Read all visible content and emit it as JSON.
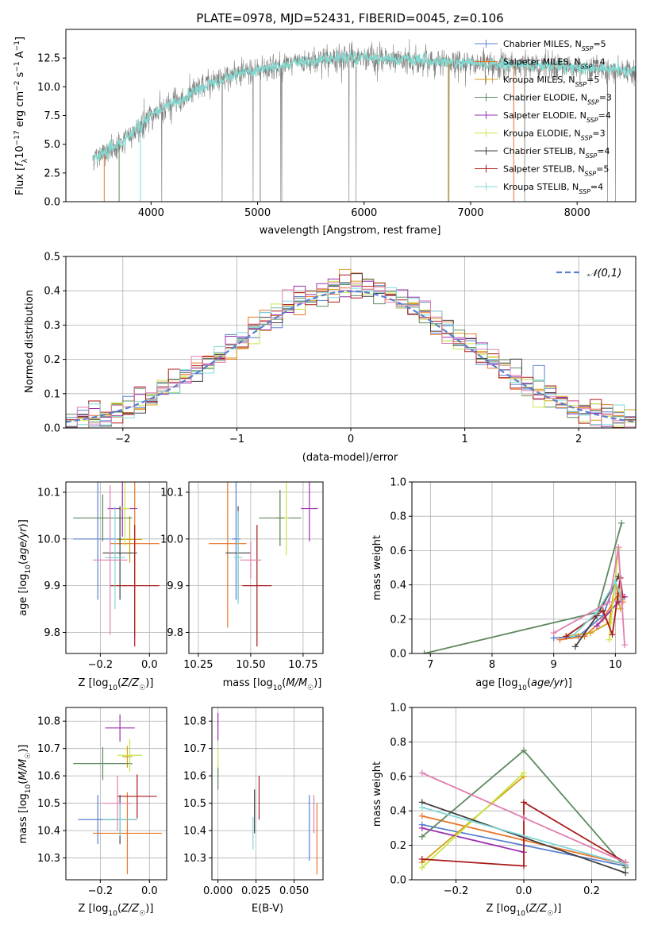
{
  "title": "PLATE=0978, MJD=52431, FIBERID=0045, z=0.106",
  "colors": {
    "c0": "#5a7fd0",
    "c1": "#e8762b",
    "c2": "#d4a017",
    "c3": "#5e8a5e",
    "c4": "#9b2fae",
    "c5": "#c8e64a",
    "c6": "#404040",
    "c7": "#aa1a1a",
    "c8": "#80d8d8",
    "c9": "#e07fb0",
    "data": "#7f7f7f"
  },
  "chart_data": [
    {
      "type": "line",
      "panel": "spectrum",
      "xlabel": "wavelength [Angstrom, rest frame]",
      "ylabel": "Flux [f_λ10^-17 erg cm^-2 s^-1 A^-1]",
      "xlim": [
        3200,
        8550
      ],
      "ylim": [
        0,
        15
      ],
      "xticks": [
        4000,
        5000,
        6000,
        7000,
        8000
      ],
      "yticks": [
        0.0,
        2.5,
        5.0,
        7.5,
        10.0,
        12.5
      ],
      "data_range": [
        3450,
        8550
      ],
      "continuum": [
        [
          3450,
          3.8
        ],
        [
          3600,
          4.3
        ],
        [
          3700,
          5.0
        ],
        [
          3800,
          5.8
        ],
        [
          3900,
          6.6
        ],
        [
          4000,
          7.5
        ],
        [
          4100,
          8.0
        ],
        [
          4200,
          8.6
        ],
        [
          4300,
          8.9
        ],
        [
          4400,
          9.6
        ],
        [
          4600,
          10.5
        ],
        [
          4800,
          11.1
        ],
        [
          5000,
          11.5
        ],
        [
          5200,
          11.8
        ],
        [
          5500,
          12.3
        ],
        [
          5800,
          12.6
        ],
        [
          6000,
          12.6
        ],
        [
          6300,
          12.4
        ],
        [
          6600,
          12.2
        ],
        [
          7000,
          12.0
        ],
        [
          7400,
          11.9
        ],
        [
          7800,
          11.8
        ],
        [
          8200,
          11.6
        ],
        [
          8550,
          11.4
        ]
      ],
      "legend": [
        {
          "name": "Chabrier MILES, N_SSP=5",
          "color": "#5a7fd0"
        },
        {
          "name": "Salpeter MILES, N_SSP=4",
          "color": "#e8762b"
        },
        {
          "name": "Kroupa MILES, N_SSP=5",
          "color": "#d4a017"
        },
        {
          "name": "Chabrier ELODIE, N_SSP=3",
          "color": "#5e8a5e"
        },
        {
          "name": "Salpeter ELODIE, N_SSP=4",
          "color": "#9b2fae"
        },
        {
          "name": "Kroupa ELODIE, N_SSP=3",
          "color": "#c8e64a"
        },
        {
          "name": "Chabrier STELIB, N_SSP=4",
          "color": "#404040"
        },
        {
          "name": "Salpeter STELIB, N_SSP=5",
          "color": "#aa1a1a"
        },
        {
          "name": "Kroupa STELIB, N_SSP=4",
          "color": "#80d8d8"
        }
      ],
      "legend_placement": "upper-right",
      "grid": false
    },
    {
      "type": "line",
      "panel": "residuals",
      "xlabel": "(data-model)/error",
      "ylabel": "Normed distribution",
      "xlim": [
        -2.5,
        2.5
      ],
      "ylim": [
        0,
        0.5
      ],
      "xticks": [
        -2,
        -1,
        0,
        1,
        2
      ],
      "yticks": [
        0.0,
        0.1,
        0.2,
        0.3,
        0.4,
        0.5
      ],
      "legend": [
        {
          "name": "N(0,1)",
          "color": "#5a7fd0",
          "style": "dashed"
        }
      ],
      "legend_placement": "upper-right",
      "grid": true
    },
    {
      "type": "scatter",
      "panel": "age_vs_Z",
      "xlabel": "Z [log10(Z/Z☉)]",
      "ylabel": "age  [log10(age/yr)]",
      "xlim": [
        -0.34,
        0.07
      ],
      "ylim": [
        9.755,
        10.122
      ],
      "xticks": [
        -0.2,
        0.0
      ],
      "yticks": [
        9.8,
        9.9,
        10.0,
        10.1
      ],
      "grid": true,
      "points": [
        {
          "x": -0.21,
          "y": 10.0,
          "xerr": 0.1,
          "yerr": 0.13,
          "color": "#5a7fd0"
        },
        {
          "x": -0.06,
          "y": 9.99,
          "xerr": 0.1,
          "yerr": 0.2,
          "color": "#e8762b"
        },
        {
          "x": -0.08,
          "y": 9.999,
          "xerr": 0.05,
          "yerr": 0.05,
          "color": "#d4a017"
        },
        {
          "x": -0.19,
          "y": 10.045,
          "xerr": 0.12,
          "yerr": 0.05,
          "color": "#5e8a5e"
        },
        {
          "x": -0.11,
          "y": 10.065,
          "xerr": 0.06,
          "yerr": 0.06,
          "color": "#9b2fae"
        },
        {
          "x": -0.1,
          "y": 10.065,
          "xerr": 0.02,
          "yerr": 0.08,
          "color": "#c8e64a"
        },
        {
          "x": -0.12,
          "y": 9.97,
          "xerr": 0.07,
          "yerr": 0.1,
          "color": "#404040"
        },
        {
          "x": -0.06,
          "y": 9.9,
          "xerr": 0.1,
          "yerr": 0.13,
          "color": "#aa1a1a"
        },
        {
          "x": -0.14,
          "y": 9.96,
          "xerr": 0.04,
          "yerr": 0.11,
          "color": "#80d8d8"
        },
        {
          "x": -0.16,
          "y": 9.955,
          "xerr": 0.07,
          "yerr": 0.16,
          "color": "#e07fb0"
        }
      ]
    },
    {
      "type": "scatter",
      "panel": "age_vs_mass",
      "xlabel": "mass [log10(M/M☉)]",
      "ylabel": "",
      "xlim": [
        10.205,
        10.845
      ],
      "ylim": [
        9.755,
        10.122
      ],
      "xticks": [
        10.25,
        10.5,
        10.75
      ],
      "yticks": [
        9.8,
        9.9,
        10.0,
        10.1
      ],
      "grid": true,
      "points": [
        {
          "x": 10.43,
          "y": 10.0,
          "xerr": 0.02,
          "yerr": 0.13,
          "color": "#5a7fd0"
        },
        {
          "x": 10.39,
          "y": 9.99,
          "xerr": 0.09,
          "yerr": 0.18,
          "color": "#e8762b"
        },
        {
          "x": 10.64,
          "y": 10.045,
          "xerr": 0.02,
          "yerr": 0.06,
          "color": "#d4a017"
        },
        {
          "x": 10.64,
          "y": 10.045,
          "xerr": 0.1,
          "yerr": 0.06,
          "color": "#5e8a5e"
        },
        {
          "x": 10.78,
          "y": 10.065,
          "xerr": 0.04,
          "yerr": 0.07,
          "color": "#9b2fae"
        },
        {
          "x": 10.67,
          "y": 10.045,
          "xerr": 0.01,
          "yerr": 0.08,
          "color": "#c8e64a"
        },
        {
          "x": 10.44,
          "y": 9.97,
          "xerr": 0.06,
          "yerr": 0.1,
          "color": "#404040"
        },
        {
          "x": 10.53,
          "y": 9.9,
          "xerr": 0.07,
          "yerr": 0.13,
          "color": "#aa1a1a"
        },
        {
          "x": 10.44,
          "y": 9.96,
          "xerr": 0.02,
          "yerr": 0.1,
          "color": "#80d8d8"
        },
        {
          "x": 10.5,
          "y": 9.955,
          "xerr": 0.05,
          "yerr": 0.04,
          "color": "#e07fb0"
        }
      ]
    },
    {
      "type": "line",
      "panel": "massweight_vs_age",
      "xlabel": "age  [log10(age/yr)]",
      "ylabel": "mass weight",
      "xlim": [
        6.7,
        10.33
      ],
      "ylim": [
        0,
        1
      ],
      "xticks": [
        7,
        8,
        9,
        10
      ],
      "yticks": [
        0.0,
        0.2,
        0.4,
        0.6,
        0.8,
        1.0
      ],
      "grid": true,
      "series": [
        {
          "color": "#5a7fd0",
          "points": [
            [
              9.0,
              0.09
            ],
            [
              9.4,
              0.1
            ],
            [
              9.8,
              0.22
            ],
            [
              10.0,
              0.42
            ],
            [
              10.1,
              0.32
            ]
          ]
        },
        {
          "color": "#e8762b",
          "points": [
            [
              9.1,
              0.08
            ],
            [
              9.5,
              0.1
            ],
            [
              9.8,
              0.2
            ],
            [
              10.05,
              0.35
            ],
            [
              10.12,
              0.3
            ]
          ]
        },
        {
          "color": "#d4a017",
          "points": [
            [
              9.2,
              0.1
            ],
            [
              9.6,
              0.12
            ],
            [
              9.9,
              0.18
            ],
            [
              10.0,
              0.42
            ],
            [
              10.08,
              0.26
            ]
          ]
        },
        {
          "color": "#5e8a5e",
          "points": [
            [
              6.9,
              0.0
            ],
            [
              9.7,
              0.24
            ],
            [
              10.1,
              0.76
            ]
          ]
        },
        {
          "color": "#9b2fae",
          "points": [
            [
              9.7,
              0.16
            ],
            [
              10.05,
              0.3
            ],
            [
              10.15,
              0.33
            ]
          ]
        },
        {
          "color": "#c8e64a",
          "points": [
            [
              9.9,
              0.08
            ],
            [
              10.05,
              0.61
            ],
            [
              10.1,
              0.31
            ]
          ]
        },
        {
          "color": "#404040",
          "points": [
            [
              9.35,
              0.04
            ],
            [
              9.7,
              0.22
            ],
            [
              10.05,
              0.45
            ]
          ]
        },
        {
          "color": "#aa1a1a",
          "points": [
            [
              9.2,
              0.1
            ],
            [
              9.8,
              0.25
            ],
            [
              9.95,
              0.11
            ],
            [
              10.08,
              0.44
            ],
            [
              10.12,
              0.33
            ]
          ]
        },
        {
          "color": "#80d8d8",
          "points": [
            [
              9.3,
              0.1
            ],
            [
              9.7,
              0.24
            ],
            [
              10.0,
              0.42
            ],
            [
              10.1,
              0.32
            ]
          ]
        },
        {
          "color": "#e07fb0",
          "points": [
            [
              9.0,
              0.12
            ],
            [
              9.9,
              0.3
            ],
            [
              10.05,
              0.62
            ],
            [
              10.15,
              0.05
            ]
          ]
        }
      ]
    },
    {
      "type": "scatter",
      "panel": "mass_vs_Z",
      "xlabel": "Z [log10(Z/Z☉)]",
      "ylabel": "mass [log10(M/M☉)]",
      "xlim": [
        -0.34,
        0.07
      ],
      "ylim": [
        10.22,
        10.85
      ],
      "xticks": [
        -0.2,
        0.0
      ],
      "yticks": [
        10.3,
        10.4,
        10.5,
        10.6,
        10.7,
        10.8
      ],
      "grid": true,
      "points": [
        {
          "x": -0.21,
          "y": 10.44,
          "xerr": 0.08,
          "yerr": 0.09,
          "color": "#5a7fd0"
        },
        {
          "x": -0.09,
          "y": 10.39,
          "xerr": 0.14,
          "yerr": 0.15,
          "color": "#e8762b"
        },
        {
          "x": -0.09,
          "y": 10.67,
          "xerr": 0.02,
          "yerr": 0.04,
          "color": "#d4a017"
        },
        {
          "x": -0.19,
          "y": 10.645,
          "xerr": 0.12,
          "yerr": 0.06,
          "color": "#5e8a5e"
        },
        {
          "x": -0.12,
          "y": 10.775,
          "xerr": 0.06,
          "yerr": 0.05,
          "color": "#9b2fae"
        },
        {
          "x": -0.08,
          "y": 10.675,
          "xerr": 0.05,
          "yerr": 0.06,
          "color": "#c8e64a"
        },
        {
          "x": -0.12,
          "y": 10.44,
          "xerr": 0.07,
          "yerr": 0.09,
          "color": "#404040"
        },
        {
          "x": -0.05,
          "y": 10.525,
          "xerr": 0.08,
          "yerr": 0.08,
          "color": "#aa1a1a"
        },
        {
          "x": -0.12,
          "y": 10.44,
          "xerr": 0.07,
          "yerr": 0.06,
          "color": "#80d8d8"
        },
        {
          "x": -0.13,
          "y": 10.5,
          "xerr": 0.06,
          "yerr": 0.1,
          "color": "#e07fb0"
        }
      ]
    },
    {
      "type": "scatter",
      "panel": "mass_vs_EBV",
      "xlabel": "E(B-V)",
      "ylabel": "",
      "xlim": [
        -0.004,
        0.069
      ],
      "ylim": [
        10.22,
        10.85
      ],
      "xticks": [
        0.0,
        0.025,
        0.05
      ],
      "yticks": [
        10.3,
        10.4,
        10.5,
        10.6,
        10.7,
        10.8
      ],
      "grid": true,
      "points": [
        {
          "x": 0.0,
          "y": 10.78,
          "yerr": 0.05,
          "color": "#9b2fae"
        },
        {
          "x": 0.0,
          "y": 10.65,
          "yerr": 0.05,
          "color": "#c8e64a"
        },
        {
          "x": 0.0,
          "y": 10.59,
          "yerr": 0.04,
          "color": "#5e8a5e"
        },
        {
          "x": 0.024,
          "y": 10.47,
          "yerr": 0.08,
          "color": "#404040"
        },
        {
          "x": 0.023,
          "y": 10.39,
          "yerr": 0.06,
          "color": "#80d8d8"
        },
        {
          "x": 0.027,
          "y": 10.52,
          "yerr": 0.08,
          "color": "#aa1a1a"
        },
        {
          "x": 0.06,
          "y": 10.41,
          "yerr": 0.12,
          "color": "#5a7fd0"
        },
        {
          "x": 0.063,
          "y": 10.46,
          "yerr": 0.07,
          "color": "#e07fb0"
        },
        {
          "x": 0.065,
          "y": 10.37,
          "yerr": 0.13,
          "color": "#e8762b"
        }
      ]
    },
    {
      "type": "line",
      "panel": "massweight_vs_Z",
      "xlabel": "Z [log10(Z/Z☉)]",
      "ylabel": "mass weight",
      "xlim": [
        -0.33,
        0.33
      ],
      "ylim": [
        0,
        1
      ],
      "xticks": [
        -0.2,
        0.0,
        0.2
      ],
      "yticks": [
        0.0,
        0.2,
        0.4,
        0.6,
        0.8,
        1.0
      ],
      "grid": true,
      "series": [
        {
          "color": "#5a7fd0",
          "points": [
            [
              -0.3,
              0.32
            ],
            [
              0.0,
              0.2
            ],
            [
              0.3,
              0.08
            ]
          ]
        },
        {
          "color": "#e8762b",
          "points": [
            [
              -0.3,
              0.37
            ],
            [
              0.0,
              0.23
            ],
            [
              0.3,
              0.09
            ]
          ]
        },
        {
          "color": "#d4a017",
          "points": [
            [
              -0.3,
              0.1
            ],
            [
              0.0,
              0.6
            ]
          ]
        },
        {
          "color": "#5e8a5e",
          "points": [
            [
              -0.3,
              0.25
            ],
            [
              0.0,
              0.75
            ],
            [
              0.3,
              0.07
            ]
          ]
        },
        {
          "color": "#9b2fae",
          "points": [
            [
              -0.3,
              0.3
            ],
            [
              0.0,
              0.16
            ]
          ]
        },
        {
          "color": "#c8e64a",
          "points": [
            [
              -0.3,
              0.07
            ],
            [
              0.0,
              0.62
            ]
          ]
        },
        {
          "color": "#404040",
          "points": [
            [
              -0.3,
              0.45
            ],
            [
              0.3,
              0.04
            ]
          ]
        },
        {
          "color": "#aa1a1a",
          "points": [
            [
              -0.3,
              0.12
            ],
            [
              0.0,
              0.08
            ],
            [
              0.0,
              0.45
            ],
            [
              0.3,
              0.1
            ]
          ]
        },
        {
          "color": "#80d8d8",
          "points": [
            [
              -0.3,
              0.42
            ],
            [
              0.3,
              0.09
            ]
          ]
        },
        {
          "color": "#e07fb0",
          "points": [
            [
              -0.3,
              0.62
            ],
            [
              0.0,
              0.36
            ],
            [
              0.3,
              0.1
            ]
          ]
        }
      ]
    }
  ]
}
